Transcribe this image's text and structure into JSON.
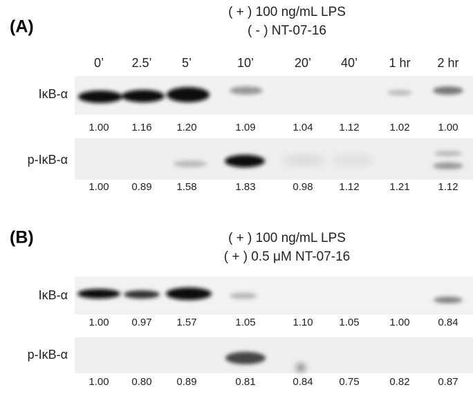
{
  "panels": [
    {
      "label": "(A)",
      "header": [
        "( + ) 100 ng/mL LPS",
        "( - ) NT-07-16"
      ],
      "lanes": [
        "0’",
        "2.5’",
        "5’",
        "10’",
        "20’",
        "40’",
        "1 hr",
        "2 hr"
      ],
      "rows": [
        {
          "name": "IκB-α",
          "values": [
            "1.00",
            "1.16",
            "1.20",
            "1.09",
            "1.04",
            "1.12",
            "1.02",
            "1.00"
          ]
        },
        {
          "name": "p-IκB-α",
          "values": [
            "1.00",
            "0.89",
            "1.58",
            "1.83",
            "0.98",
            "1.12",
            "1.21",
            "1.12"
          ]
        }
      ]
    },
    {
      "label": "(B)",
      "header": [
        "( + ) 100 ng/mL LPS",
        "( + ) 0.5 μM NT-07-16"
      ],
      "rows": [
        {
          "name": "IκB-α",
          "values": [
            "1.00",
            "0.97",
            "1.57",
            "1.05",
            "1.10",
            "1.05",
            "1.00",
            "0.84"
          ]
        },
        {
          "name": "p-IκB-α",
          "values": [
            "1.00",
            "0.80",
            "0.89",
            "0.81",
            "0.84",
            "0.75",
            "0.82",
            "0.87"
          ]
        }
      ]
    }
  ]
}
